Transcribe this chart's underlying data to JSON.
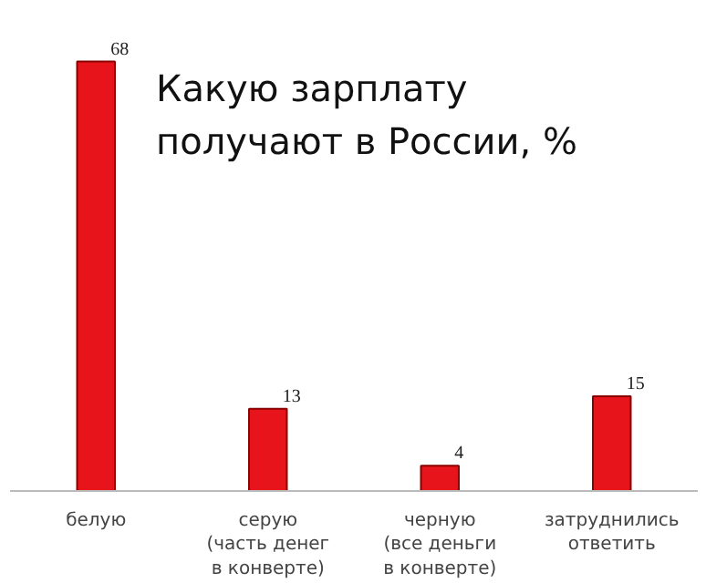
{
  "chart_data": {
    "type": "bar",
    "title": "Какую зарплату\nполучают в России, %",
    "categories": [
      "белую",
      "серую\n(часть денег\nв конверте)",
      "черную\n(все деньги\nв конверте)",
      "затруднились\nответить"
    ],
    "values": [
      68,
      13,
      4,
      15
    ],
    "color": "#e8141b",
    "data_labels": true,
    "grid": false
  }
}
